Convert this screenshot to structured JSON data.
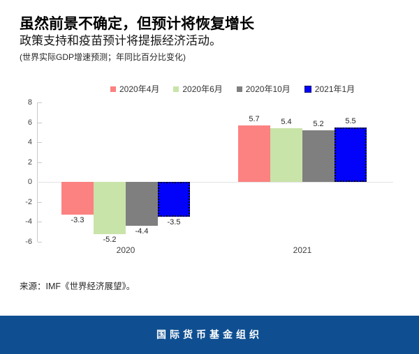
{
  "header": {
    "title": "虽然前景不确定，但预计将恢复增长",
    "subtitle": "政策支持和疫苗预计将提振经济活动。",
    "note": "(世界实际GDP增速预测；年同比百分比变化)"
  },
  "chart_data": {
    "type": "bar",
    "categories": [
      "2020",
      "2021"
    ],
    "series": [
      {
        "name": "2020年4月",
        "color": "#fc8181",
        "values": [
          -3.3,
          5.7
        ],
        "forecast": false
      },
      {
        "name": "2020年6月",
        "color": "#c9e4a9",
        "values": [
          -5.2,
          5.4
        ],
        "forecast": false
      },
      {
        "name": "2020年10月",
        "color": "#7f7f7f",
        "values": [
          -4.4,
          5.2
        ],
        "forecast": false
      },
      {
        "name": "2021年1月",
        "color": "#0202fa",
        "values": [
          -3.5,
          5.5
        ],
        "forecast": true
      }
    ],
    "ylim": [
      -6,
      8
    ],
    "yticks": [
      8,
      6,
      4,
      2,
      0,
      -2,
      -4,
      -6
    ],
    "value_labels": true,
    "legend_position": "top",
    "grid": false,
    "zero_line_color": "#e3e3e3",
    "axis_color": "#c9c9c9"
  },
  "source": {
    "text": "来源：IMF《世界经济展望》。"
  },
  "footer": {
    "text": "国际货币基金组织",
    "background": "#0f4f91"
  }
}
